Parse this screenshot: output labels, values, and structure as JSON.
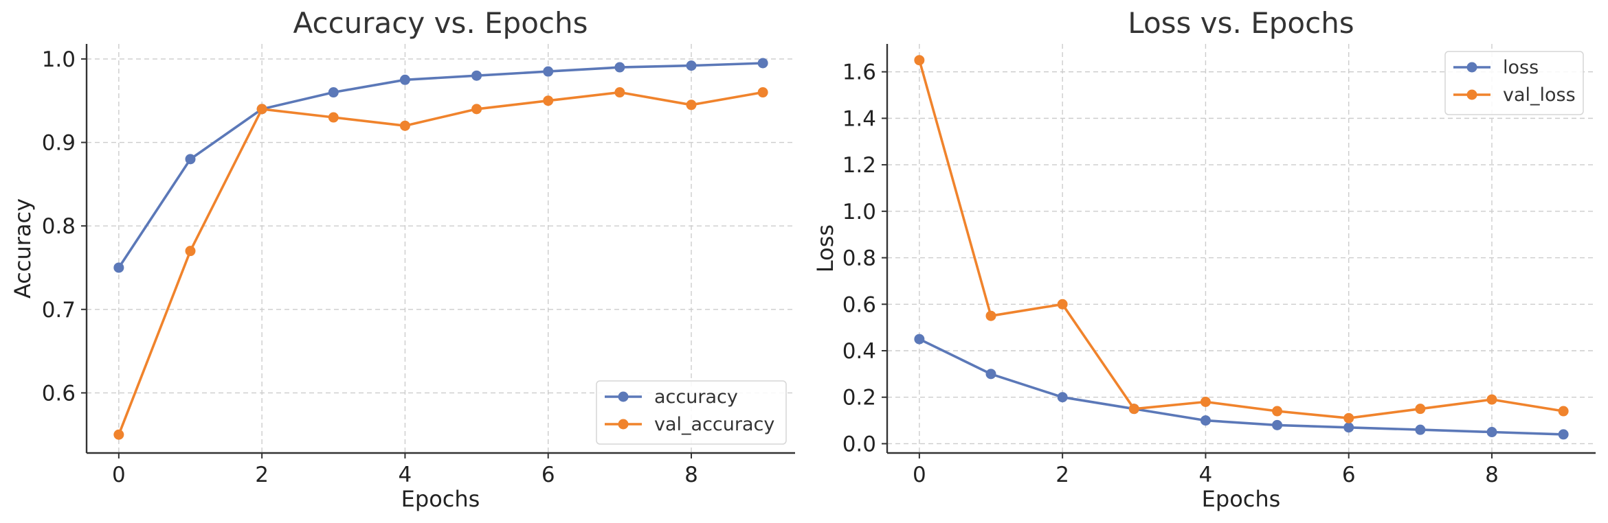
{
  "colors": {
    "series_1": "#5b78b8",
    "series_2": "#f0832c"
  },
  "chart_data": [
    {
      "type": "line",
      "title": "Accuracy vs. Epochs",
      "xlabel": "Epochs",
      "ylabel": "Accuracy",
      "x": [
        0,
        1,
        2,
        3,
        4,
        5,
        6,
        7,
        8,
        9
      ],
      "xlim": [
        -0.45,
        9.45
      ],
      "ylim": [
        0.528,
        1.018
      ],
      "xticks": [
        0,
        2,
        4,
        6,
        8
      ],
      "yticks": [
        0.6,
        0.7,
        0.8,
        0.9,
        1.0
      ],
      "ytick_labels": [
        "0.6",
        "0.7",
        "0.8",
        "0.9",
        "1.0"
      ],
      "grid": true,
      "legend_position": "lower-right",
      "series": [
        {
          "name": "accuracy",
          "color": "#5b78b8",
          "values": [
            0.75,
            0.88,
            0.94,
            0.96,
            0.975,
            0.98,
            0.985,
            0.99,
            0.992,
            0.995
          ]
        },
        {
          "name": "val_accuracy",
          "color": "#f0832c",
          "values": [
            0.55,
            0.77,
            0.94,
            0.93,
            0.92,
            0.94,
            0.95,
            0.96,
            0.945,
            0.96
          ]
        }
      ]
    },
    {
      "type": "line",
      "title": "Loss vs. Epochs",
      "xlabel": "Epochs",
      "ylabel": "Loss",
      "x": [
        0,
        1,
        2,
        3,
        4,
        5,
        6,
        7,
        8,
        9
      ],
      "xlim": [
        -0.45,
        9.45
      ],
      "ylim": [
        -0.04,
        1.72
      ],
      "xticks": [
        0,
        2,
        4,
        6,
        8
      ],
      "yticks": [
        0.0,
        0.2,
        0.4,
        0.6,
        0.8,
        1.0,
        1.2,
        1.4,
        1.6
      ],
      "ytick_labels": [
        "0.0",
        "0.2",
        "0.4",
        "0.6",
        "0.8",
        "1.0",
        "1.2",
        "1.4",
        "1.6"
      ],
      "grid": true,
      "legend_position": "upper-right",
      "series": [
        {
          "name": "loss",
          "color": "#5b78b8",
          "values": [
            0.45,
            0.3,
            0.2,
            0.15,
            0.1,
            0.08,
            0.07,
            0.06,
            0.05,
            0.04
          ]
        },
        {
          "name": "val_loss",
          "color": "#f0832c",
          "values": [
            1.65,
            0.55,
            0.6,
            0.15,
            0.18,
            0.14,
            0.11,
            0.15,
            0.19,
            0.14
          ]
        }
      ]
    }
  ]
}
